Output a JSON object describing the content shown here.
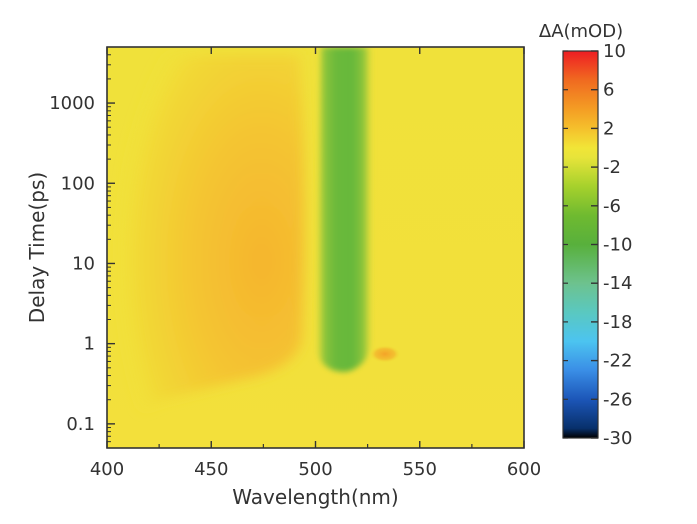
{
  "chart_data": {
    "type": "heatmap",
    "title": "",
    "xlabel": "Wavelength(nm)",
    "ylabel": "Delay Time(ps)",
    "x_range": [
      400,
      600
    ],
    "y_range": [
      0.05,
      5000
    ],
    "y_scale": "log",
    "x_ticks": [
      400,
      450,
      500,
      550,
      600
    ],
    "y_ticks": [
      0.1,
      1,
      10,
      100,
      1000
    ],
    "colorbar": {
      "label": "ΔA(mOD)",
      "range": [
        -30,
        10
      ],
      "ticks": [
        10,
        6,
        2,
        -2,
        -6,
        -10,
        -14,
        -18,
        -22,
        -26,
        -30
      ],
      "colors": [
        {
          "value": -30,
          "color": "#000000"
        },
        {
          "value": -29,
          "color": "#08306b"
        },
        {
          "value": -26,
          "color": "#1c56b8"
        },
        {
          "value": -23,
          "color": "#3a8ee6"
        },
        {
          "value": -20,
          "color": "#4cc4f0"
        },
        {
          "value": -17,
          "color": "#5ac8c0"
        },
        {
          "value": -14,
          "color": "#6dc28e"
        },
        {
          "value": -10,
          "color": "#58b03c"
        },
        {
          "value": -7,
          "color": "#6fba30"
        },
        {
          "value": -4,
          "color": "#a6d12c"
        },
        {
          "value": -1,
          "color": "#e7e43a"
        },
        {
          "value": 0,
          "color": "#f1e537"
        },
        {
          "value": 2,
          "color": "#f5c02c"
        },
        {
          "value": 4,
          "color": "#f49d24"
        },
        {
          "value": 7,
          "color": "#f06a20"
        },
        {
          "value": 10,
          "color": "#ee1d23"
        }
      ]
    },
    "features": [
      {
        "name": "positive-band",
        "x_range": [
          405,
          498
        ],
        "y_range": [
          0.5,
          3000
        ],
        "peak_x": 478,
        "peak_y": 2,
        "value": 2.5
      },
      {
        "name": "negative-band",
        "x_range": [
          501,
          527
        ],
        "y_range": [
          0.5,
          5000
        ],
        "value": -8
      },
      {
        "name": "early-positive-spot",
        "x_center": 534,
        "y_center": 0.8,
        "value": 3
      },
      {
        "name": "background",
        "value": 0
      }
    ]
  }
}
